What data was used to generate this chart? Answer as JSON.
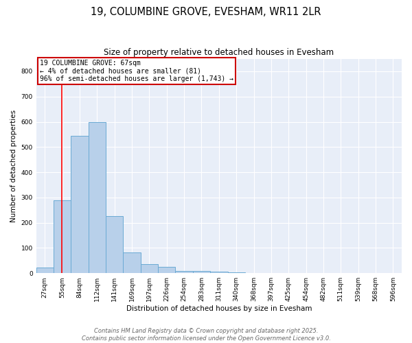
{
  "title": "19, COLUMBINE GROVE, EVESHAM, WR11 2LR",
  "subtitle": "Size of property relative to detached houses in Evesham",
  "xlabel": "Distribution of detached houses by size in Evesham",
  "ylabel": "Number of detached properties",
  "bins": [
    "27sqm",
    "55sqm",
    "84sqm",
    "112sqm",
    "141sqm",
    "169sqm",
    "197sqm",
    "226sqm",
    "254sqm",
    "283sqm",
    "311sqm",
    "340sqm",
    "368sqm",
    "397sqm",
    "425sqm",
    "454sqm",
    "482sqm",
    "511sqm",
    "539sqm",
    "568sqm",
    "596sqm"
  ],
  "counts": [
    22,
    290,
    545,
    600,
    225,
    83,
    37,
    25,
    10,
    8,
    5,
    4,
    1,
    1,
    0,
    0,
    0,
    0,
    0,
    0,
    0
  ],
  "bar_color": "#b8d0ea",
  "bar_edge_color": "#6aaad4",
  "red_line_x": 0.97,
  "annotation_text": "19 COLUMBINE GROVE: 67sqm\n← 4% of detached houses are smaller (81)\n96% of semi-detached houses are larger (1,743) →",
  "annotation_box_color": "#ffffff",
  "annotation_box_edge_color": "#cc0000",
  "ylim": [
    0,
    850
  ],
  "yticks": [
    0,
    100,
    200,
    300,
    400,
    500,
    600,
    700,
    800
  ],
  "footer_text": "Contains HM Land Registry data © Crown copyright and database right 2025.\nContains public sector information licensed under the Open Government Licence v3.0.",
  "bg_color": "#e8eef8",
  "grid_color": "#ffffff",
  "title_fontsize": 10.5,
  "subtitle_fontsize": 8.5,
  "label_fontsize": 7.5,
  "tick_fontsize": 6.5,
  "annotation_fontsize": 7,
  "footer_fontsize": 6
}
